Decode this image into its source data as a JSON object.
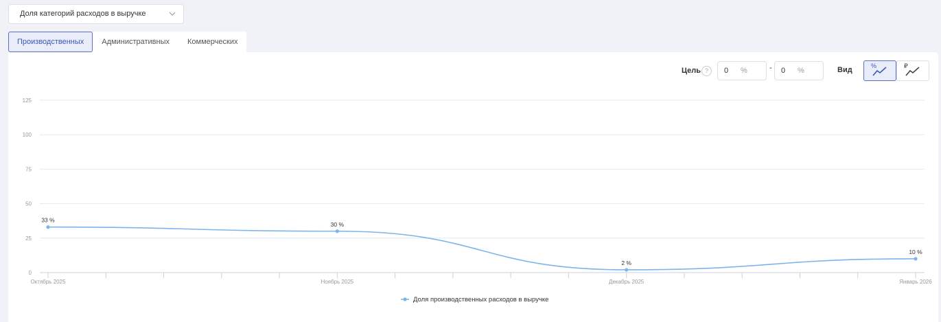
{
  "selector": {
    "value": "Доля категорий расходов в выручке"
  },
  "tabs": [
    {
      "label": "Производственных",
      "active": true
    },
    {
      "label": "Административных",
      "active": false
    },
    {
      "label": "Коммерческих",
      "active": false
    }
  ],
  "toolbar": {
    "goal_label": "Цель",
    "help_symbol": "?",
    "goal_from": "0",
    "goal_to": "0",
    "unit": "%",
    "separator": "-",
    "view_label": "Вид",
    "view_percent_symbol": "%",
    "view_rub_symbol": "₽",
    "view_percent_icon": "percent-line-chart-icon",
    "view_rub_icon": "ruble-line-chart-icon"
  },
  "colors": {
    "accent": "#5b6fc4",
    "series": "#7cb5ec"
  },
  "chart_data": {
    "type": "line",
    "categories": [
      "Октябрь 2025",
      "Ноябрь 2025",
      "Декабрь 2025",
      "Январь 2026"
    ],
    "series": [
      {
        "name": "Доля производственных расходов в выручке",
        "values": [
          33,
          30,
          2,
          10
        ],
        "labels": [
          "33 %",
          "30 %",
          "2 %",
          "10 %"
        ]
      }
    ],
    "y_ticks": [
      0,
      25,
      50,
      75,
      100,
      125
    ],
    "ylim": [
      0,
      125
    ],
    "grid": true,
    "smooth": true,
    "legend_position": "bottom-center"
  }
}
